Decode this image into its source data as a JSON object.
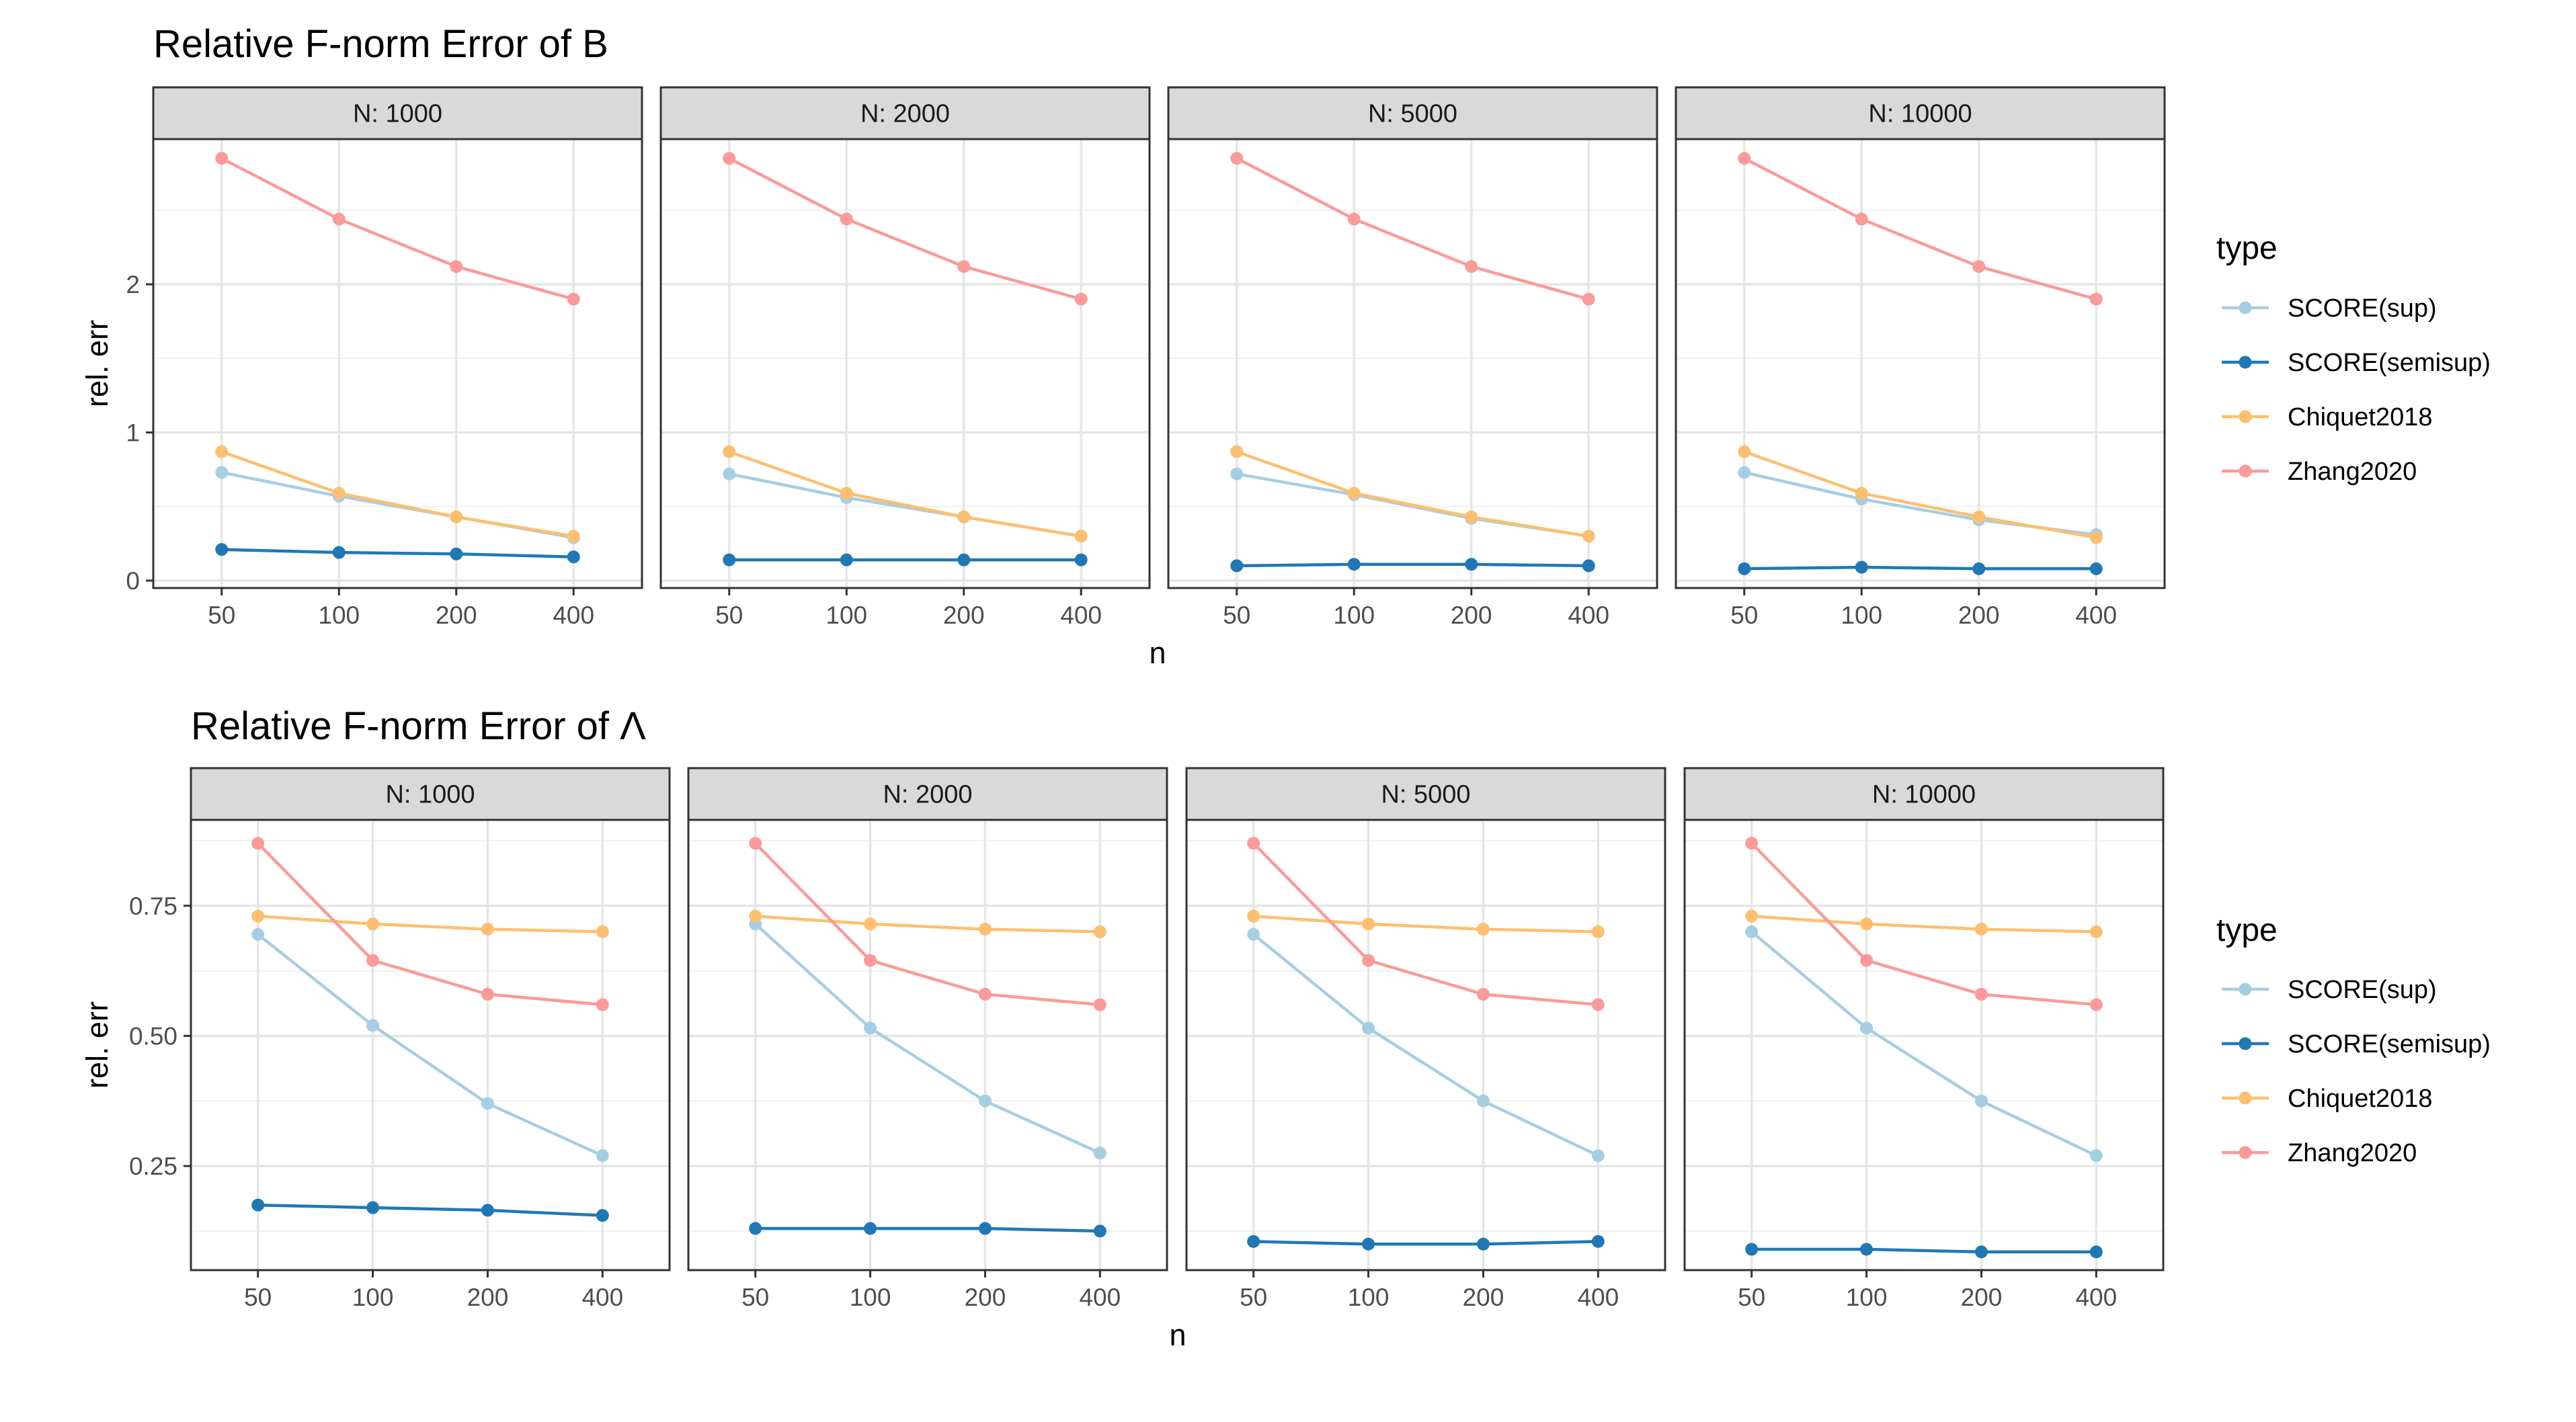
{
  "chart_data": [
    {
      "type": "line",
      "title": "Relative F-norm Error of B",
      "xlabel": "n",
      "ylabel": "rel. err",
      "facet_label_prefix": "N: ",
      "x": [
        "50",
        "100",
        "200",
        "400"
      ],
      "yticks": [
        0,
        1,
        2
      ],
      "ylim": [
        -0.05,
        2.98
      ],
      "grid": true,
      "legend": {
        "title": "type",
        "position": "right",
        "entries": [
          "SCORE(sup)",
          "SCORE(semisup)",
          "Chiquet2018",
          "Zhang2020"
        ]
      },
      "panels": [
        {
          "facet": "1000",
          "series": [
            {
              "name": "SCORE(sup)",
              "values": [
                0.73,
                0.57,
                0.43,
                0.29
              ]
            },
            {
              "name": "SCORE(semisup)",
              "values": [
                0.21,
                0.19,
                0.18,
                0.16
              ]
            },
            {
              "name": "Chiquet2018",
              "values": [
                0.87,
                0.59,
                0.43,
                0.3
              ]
            },
            {
              "name": "Zhang2020",
              "values": [
                2.85,
                2.44,
                2.12,
                1.9
              ]
            }
          ]
        },
        {
          "facet": "2000",
          "series": [
            {
              "name": "SCORE(sup)",
              "values": [
                0.72,
                0.56,
                0.43,
                0.3
              ]
            },
            {
              "name": "SCORE(semisup)",
              "values": [
                0.14,
                0.14,
                0.14,
                0.14
              ]
            },
            {
              "name": "Chiquet2018",
              "values": [
                0.87,
                0.59,
                0.43,
                0.3
              ]
            },
            {
              "name": "Zhang2020",
              "values": [
                2.85,
                2.44,
                2.12,
                1.9
              ]
            }
          ]
        },
        {
          "facet": "5000",
          "series": [
            {
              "name": "SCORE(sup)",
              "values": [
                0.72,
                0.58,
                0.42,
                0.3
              ]
            },
            {
              "name": "SCORE(semisup)",
              "values": [
                0.1,
                0.11,
                0.11,
                0.1
              ]
            },
            {
              "name": "Chiquet2018",
              "values": [
                0.87,
                0.59,
                0.43,
                0.3
              ]
            },
            {
              "name": "Zhang2020",
              "values": [
                2.85,
                2.44,
                2.12,
                1.9
              ]
            }
          ]
        },
        {
          "facet": "10000",
          "series": [
            {
              "name": "SCORE(sup)",
              "values": [
                0.73,
                0.55,
                0.41,
                0.31
              ]
            },
            {
              "name": "SCORE(semisup)",
              "values": [
                0.08,
                0.09,
                0.08,
                0.08
              ]
            },
            {
              "name": "Chiquet2018",
              "values": [
                0.87,
                0.59,
                0.43,
                0.29
              ]
            },
            {
              "name": "Zhang2020",
              "values": [
                2.85,
                2.44,
                2.12,
                1.9
              ]
            }
          ]
        }
      ]
    },
    {
      "type": "line",
      "title": "Relative F-norm Error of Λ",
      "xlabel": "n",
      "ylabel": "rel. err",
      "facet_label_prefix": "N: ",
      "x": [
        "50",
        "100",
        "200",
        "400"
      ],
      "yticks": [
        0.25,
        0.5,
        0.75
      ],
      "ytick_labels": [
        "0.25",
        "0.50",
        "0.75"
      ],
      "ylim": [
        0.05,
        0.915
      ],
      "grid": true,
      "legend": {
        "title": "type",
        "position": "right",
        "entries": [
          "SCORE(sup)",
          "SCORE(semisup)",
          "Chiquet2018",
          "Zhang2020"
        ]
      },
      "panels": [
        {
          "facet": "1000",
          "series": [
            {
              "name": "SCORE(sup)",
              "values": [
                0.695,
                0.52,
                0.37,
                0.27
              ]
            },
            {
              "name": "SCORE(semisup)",
              "values": [
                0.175,
                0.17,
                0.165,
                0.155
              ]
            },
            {
              "name": "Chiquet2018",
              "values": [
                0.73,
                0.715,
                0.705,
                0.7
              ]
            },
            {
              "name": "Zhang2020",
              "values": [
                0.87,
                0.645,
                0.58,
                0.56
              ]
            }
          ]
        },
        {
          "facet": "2000",
          "series": [
            {
              "name": "SCORE(sup)",
              "values": [
                0.715,
                0.515,
                0.375,
                0.275
              ]
            },
            {
              "name": "SCORE(semisup)",
              "values": [
                0.13,
                0.13,
                0.13,
                0.125
              ]
            },
            {
              "name": "Chiquet2018",
              "values": [
                0.73,
                0.715,
                0.705,
                0.7
              ]
            },
            {
              "name": "Zhang2020",
              "values": [
                0.87,
                0.645,
                0.58,
                0.56
              ]
            }
          ]
        },
        {
          "facet": "5000",
          "series": [
            {
              "name": "SCORE(sup)",
              "values": [
                0.695,
                0.515,
                0.375,
                0.27
              ]
            },
            {
              "name": "SCORE(semisup)",
              "values": [
                0.105,
                0.1,
                0.1,
                0.105
              ]
            },
            {
              "name": "Chiquet2018",
              "values": [
                0.73,
                0.715,
                0.705,
                0.7
              ]
            },
            {
              "name": "Zhang2020",
              "values": [
                0.87,
                0.645,
                0.58,
                0.56
              ]
            }
          ]
        },
        {
          "facet": "10000",
          "series": [
            {
              "name": "SCORE(sup)",
              "values": [
                0.7,
                0.515,
                0.375,
                0.27
              ]
            },
            {
              "name": "SCORE(semisup)",
              "values": [
                0.09,
                0.09,
                0.085,
                0.085
              ]
            },
            {
              "name": "Chiquet2018",
              "values": [
                0.73,
                0.715,
                0.705,
                0.7
              ]
            },
            {
              "name": "Zhang2020",
              "values": [
                0.87,
                0.645,
                0.58,
                0.56
              ]
            }
          ]
        }
      ]
    }
  ],
  "colors": {
    "SCORE(sup)": "#A6CEE3",
    "SCORE(semisup)": "#1F78B4",
    "Chiquet2018": "#FDBF6F",
    "Zhang2020": "#FB9A99"
  }
}
